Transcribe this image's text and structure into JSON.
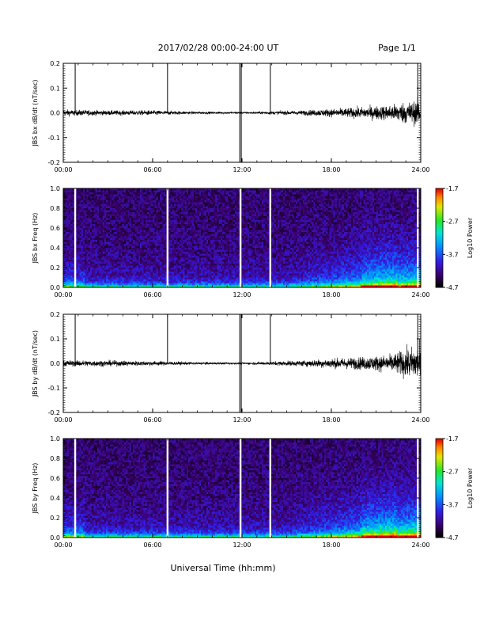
{
  "header": {
    "title": "2017/02/28   00:00-24:00 UT",
    "page": "Page 1/1"
  },
  "xaxis_title": "Universal Time (hh:mm)",
  "time_ticks": [
    "00:00",
    "06:00",
    "12:00",
    "18:00",
    "24:00"
  ],
  "chart_data": [
    {
      "type": "line",
      "ylabel": "JBS bx dB/dt (nT/sec)",
      "xlim_hours": [
        0,
        24
      ],
      "ylim": [
        -0.2,
        0.2
      ],
      "yticks": [
        "0.2",
        "0.1",
        "0.0",
        "-0.1",
        "-0.2"
      ],
      "spikes_hours": [
        0.8,
        7.0,
        11.85,
        11.95,
        13.9,
        23.8
      ],
      "envelope": {
        "x_hours": [
          0,
          3,
          6,
          9,
          12,
          14,
          16,
          18,
          20,
          22,
          23,
          24
        ],
        "amplitude": [
          0.02,
          0.015,
          0.015,
          0.008,
          0.006,
          0.01,
          0.015,
          0.025,
          0.035,
          0.05,
          0.07,
          0.08
        ]
      }
    },
    {
      "type": "heatmap",
      "ylabel": "JBS bx Freq (Hz)",
      "xlim_hours": [
        0,
        24
      ],
      "ylim": [
        0,
        1.0
      ],
      "yticks": [
        "1.0",
        "0.8",
        "0.6",
        "0.4",
        "0.2",
        "0.0"
      ],
      "gaps_hours": [
        0.8,
        7.0,
        11.9,
        13.9,
        23.8
      ],
      "colorbar": {
        "label": "Log10 Power",
        "ticks": [
          "-1.7",
          "-2.7",
          "-3.7",
          "-4.7"
        ],
        "range": [
          -4.7,
          -1.7
        ]
      }
    },
    {
      "type": "line",
      "ylabel": "JBS by dB/dt (nT/sec)",
      "xlim_hours": [
        0,
        24
      ],
      "ylim": [
        -0.2,
        0.2
      ],
      "yticks": [
        "0.2",
        "0.1",
        "0.0",
        "-0.1",
        "-0.2"
      ],
      "spikes_hours": [
        0.8,
        7.0,
        11.85,
        11.95,
        13.9,
        23.8
      ],
      "envelope": {
        "x_hours": [
          0,
          3,
          6,
          9,
          12,
          14,
          16,
          18,
          20,
          22,
          23,
          24
        ],
        "amplitude": [
          0.02,
          0.018,
          0.015,
          0.008,
          0.006,
          0.012,
          0.018,
          0.03,
          0.04,
          0.055,
          0.09,
          0.12
        ]
      }
    },
    {
      "type": "heatmap",
      "ylabel": "JBS by Freq (Hz)",
      "xlim_hours": [
        0,
        24
      ],
      "ylim": [
        0,
        1.0
      ],
      "yticks": [
        "1.0",
        "0.8",
        "0.6",
        "0.4",
        "0.2",
        "0.0"
      ],
      "gaps_hours": [
        0.8,
        7.0,
        11.9,
        13.9,
        23.8
      ],
      "colorbar": {
        "label": "Log10 Power",
        "ticks": [
          "-1.7",
          "-2.7",
          "-3.7",
          "-4.7"
        ],
        "range": [
          -4.7,
          -1.7
        ]
      }
    }
  ]
}
